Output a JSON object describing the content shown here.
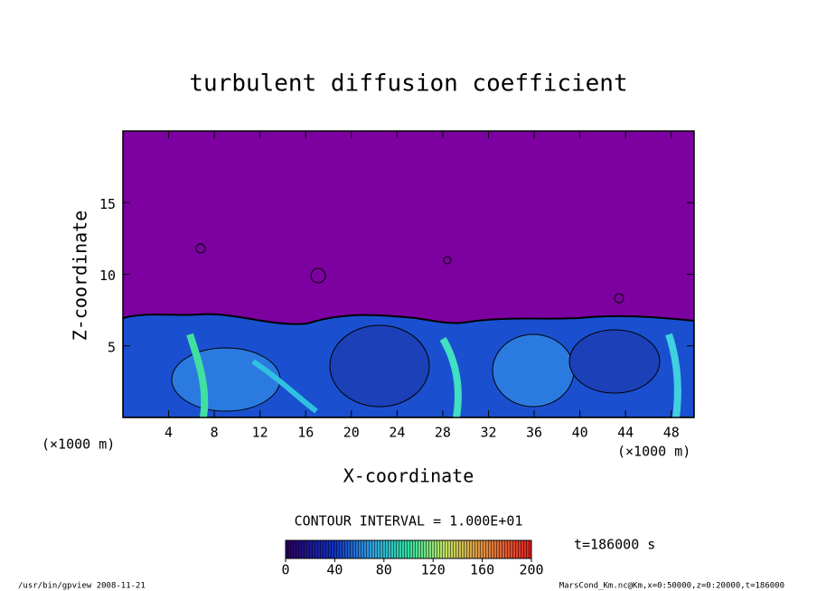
{
  "chart_data": {
    "type": "contour",
    "title": "turbulent diffusion coefficient",
    "x_label": "X-coordinate",
    "y_label": "Z-coordinate",
    "x_unit": "(×1000 m)",
    "y_unit": "(×1000 m)",
    "xlim": [
      0,
      50
    ],
    "ylim": [
      0,
      20
    ],
    "xticks": [
      4,
      8,
      12,
      16,
      20,
      24,
      28,
      32,
      36,
      40,
      44,
      48
    ],
    "yticks": [
      5,
      10,
      15
    ],
    "contour_interval": "CONTOUR INTERVAL = 1.000E+01",
    "time": "t=186000 s",
    "colorbar": {
      "lim": [
        0,
        200
      ],
      "ticks": [
        0,
        40,
        80,
        120,
        160,
        200
      ]
    },
    "footer_left": "/usr/bin/gpview  2008-11-21",
    "footer_right": "MarsCond_Km.nc@Km,x=0:50000,z=0:20000,t=186000"
  }
}
